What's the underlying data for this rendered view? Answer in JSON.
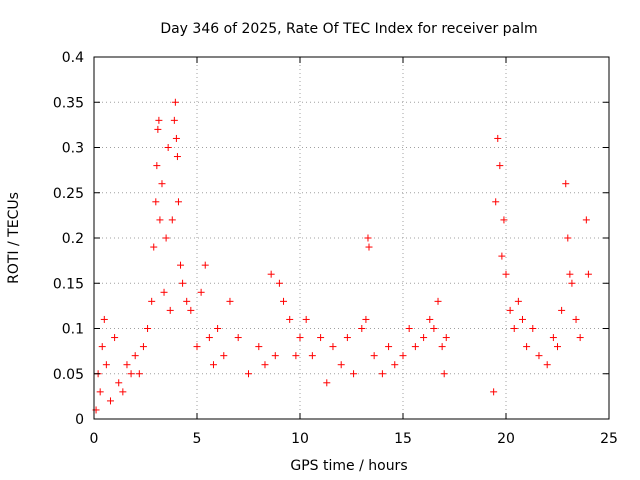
{
  "chart_data": {
    "type": "scatter",
    "title": "Day 346 of 2025, Rate Of TEC Index for receiver palm",
    "xlabel": "GPS time / hours",
    "ylabel": "ROTI / TECUs",
    "xlim": [
      0,
      25
    ],
    "ylim": [
      0,
      0.4
    ],
    "x_ticks": [
      0,
      5,
      10,
      15,
      20,
      25
    ],
    "y_ticks": [
      0,
      0.05,
      0.1,
      0.15,
      0.2,
      0.25,
      0.3,
      0.35,
      0.4
    ],
    "x_tick_labels": [
      "0",
      "5",
      "10",
      "15",
      "20",
      "25"
    ],
    "y_tick_labels": [
      "0",
      "0.05",
      "0.1",
      "0.15",
      "0.2",
      "0.25",
      "0.3",
      "0.35",
      "0.4"
    ],
    "grid": true,
    "marker": "+",
    "series": [
      {
        "name": "ROTI",
        "color": "#ff0000",
        "points": [
          [
            0.1,
            0.01
          ],
          [
            0.2,
            0.05
          ],
          [
            0.3,
            0.03
          ],
          [
            0.4,
            0.08
          ],
          [
            0.5,
            0.11
          ],
          [
            0.6,
            0.06
          ],
          [
            0.8,
            0.02
          ],
          [
            1.0,
            0.09
          ],
          [
            1.2,
            0.04
          ],
          [
            1.4,
            0.03
          ],
          [
            1.6,
            0.06
          ],
          [
            1.8,
            0.05
          ],
          [
            2.0,
            0.07
          ],
          [
            2.2,
            0.05
          ],
          [
            2.4,
            0.08
          ],
          [
            2.6,
            0.1
          ],
          [
            2.8,
            0.13
          ],
          [
            2.9,
            0.19
          ],
          [
            3.0,
            0.24
          ],
          [
            3.05,
            0.28
          ],
          [
            3.1,
            0.32
          ],
          [
            3.15,
            0.33
          ],
          [
            3.2,
            0.22
          ],
          [
            3.3,
            0.26
          ],
          [
            3.4,
            0.14
          ],
          [
            3.5,
            0.2
          ],
          [
            3.6,
            0.3
          ],
          [
            3.7,
            0.12
          ],
          [
            3.8,
            0.22
          ],
          [
            3.9,
            0.33
          ],
          [
            3.95,
            0.35
          ],
          [
            4.0,
            0.31
          ],
          [
            4.05,
            0.29
          ],
          [
            4.1,
            0.24
          ],
          [
            4.2,
            0.17
          ],
          [
            4.3,
            0.15
          ],
          [
            4.5,
            0.13
          ],
          [
            4.7,
            0.12
          ],
          [
            5.0,
            0.08
          ],
          [
            5.2,
            0.14
          ],
          [
            5.4,
            0.17
          ],
          [
            5.6,
            0.09
          ],
          [
            5.8,
            0.06
          ],
          [
            6.0,
            0.1
          ],
          [
            6.3,
            0.07
          ],
          [
            6.6,
            0.13
          ],
          [
            7.0,
            0.09
          ],
          [
            7.5,
            0.05
          ],
          [
            8.0,
            0.08
          ],
          [
            8.3,
            0.06
          ],
          [
            8.6,
            0.16
          ],
          [
            8.8,
            0.07
          ],
          [
            9.0,
            0.15
          ],
          [
            9.2,
            0.13
          ],
          [
            9.5,
            0.11
          ],
          [
            9.8,
            0.07
          ],
          [
            10.0,
            0.09
          ],
          [
            10.3,
            0.11
          ],
          [
            10.6,
            0.07
          ],
          [
            11.0,
            0.09
          ],
          [
            11.3,
            0.04
          ],
          [
            11.6,
            0.08
          ],
          [
            12.0,
            0.06
          ],
          [
            12.3,
            0.09
          ],
          [
            12.6,
            0.05
          ],
          [
            13.0,
            0.1
          ],
          [
            13.2,
            0.11
          ],
          [
            13.3,
            0.2
          ],
          [
            13.35,
            0.19
          ],
          [
            13.6,
            0.07
          ],
          [
            14.0,
            0.05
          ],
          [
            14.3,
            0.08
          ],
          [
            14.6,
            0.06
          ],
          [
            15.0,
            0.07
          ],
          [
            15.3,
            0.1
          ],
          [
            15.6,
            0.08
          ],
          [
            16.0,
            0.09
          ],
          [
            16.3,
            0.11
          ],
          [
            16.5,
            0.1
          ],
          [
            16.7,
            0.13
          ],
          [
            16.9,
            0.08
          ],
          [
            17.0,
            0.05
          ],
          [
            17.1,
            0.09
          ],
          [
            19.4,
            0.03
          ],
          [
            19.5,
            0.24
          ],
          [
            19.6,
            0.31
          ],
          [
            19.7,
            0.28
          ],
          [
            19.8,
            0.18
          ],
          [
            19.9,
            0.22
          ],
          [
            20.0,
            0.16
          ],
          [
            20.2,
            0.12
          ],
          [
            20.4,
            0.1
          ],
          [
            20.6,
            0.13
          ],
          [
            20.8,
            0.11
          ],
          [
            21.0,
            0.08
          ],
          [
            21.3,
            0.1
          ],
          [
            21.6,
            0.07
          ],
          [
            22.0,
            0.06
          ],
          [
            22.3,
            0.09
          ],
          [
            22.5,
            0.08
          ],
          [
            22.7,
            0.12
          ],
          [
            22.9,
            0.26
          ],
          [
            23.0,
            0.2
          ],
          [
            23.1,
            0.16
          ],
          [
            23.2,
            0.15
          ],
          [
            23.4,
            0.11
          ],
          [
            23.6,
            0.09
          ],
          [
            23.9,
            0.22
          ],
          [
            24.0,
            0.16
          ]
        ]
      }
    ]
  }
}
